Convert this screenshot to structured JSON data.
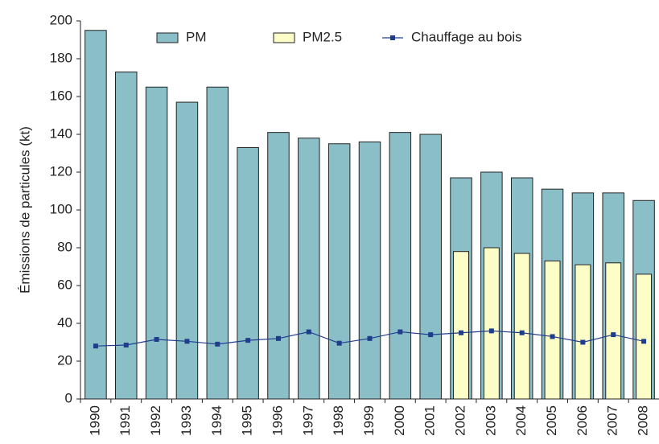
{
  "chart_data": {
    "type": "bar",
    "y_label": "Émissions de particules (kt)",
    "categories": [
      "1990",
      "1991",
      "1992",
      "1993",
      "1994",
      "1995",
      "1996",
      "1997",
      "1998",
      "1999",
      "2000",
      "2001",
      "2002",
      "2003",
      "2004",
      "2005",
      "2006",
      "2007",
      "2008"
    ],
    "series": [
      {
        "name": "PM",
        "type": "bar",
        "color": "#8bbfc8",
        "values": [
          195,
          173,
          165,
          157,
          165,
          133,
          141,
          138,
          135,
          136,
          141,
          140,
          117,
          120,
          117,
          111,
          109,
          109,
          105
        ]
      },
      {
        "name": "PM2.5",
        "type": "bar",
        "color": "#fdfdc8",
        "values": [
          null,
          null,
          null,
          null,
          null,
          null,
          null,
          null,
          null,
          null,
          null,
          null,
          78,
          80,
          77,
          73,
          71,
          72,
          66
        ]
      },
      {
        "name": "Chauffage au bois",
        "type": "line",
        "color": "#1f3d8c",
        "values": [
          28,
          28.5,
          31.5,
          30.5,
          29,
          31,
          32,
          35.5,
          29.5,
          32,
          35.5,
          34,
          35,
          36,
          35,
          33,
          30,
          34,
          30.5
        ]
      }
    ],
    "ylim": [
      0,
      200
    ],
    "yticks": [
      0,
      20,
      40,
      60,
      80,
      100,
      120,
      140,
      160,
      180,
      200
    ],
    "grid": false,
    "legend": "top"
  }
}
